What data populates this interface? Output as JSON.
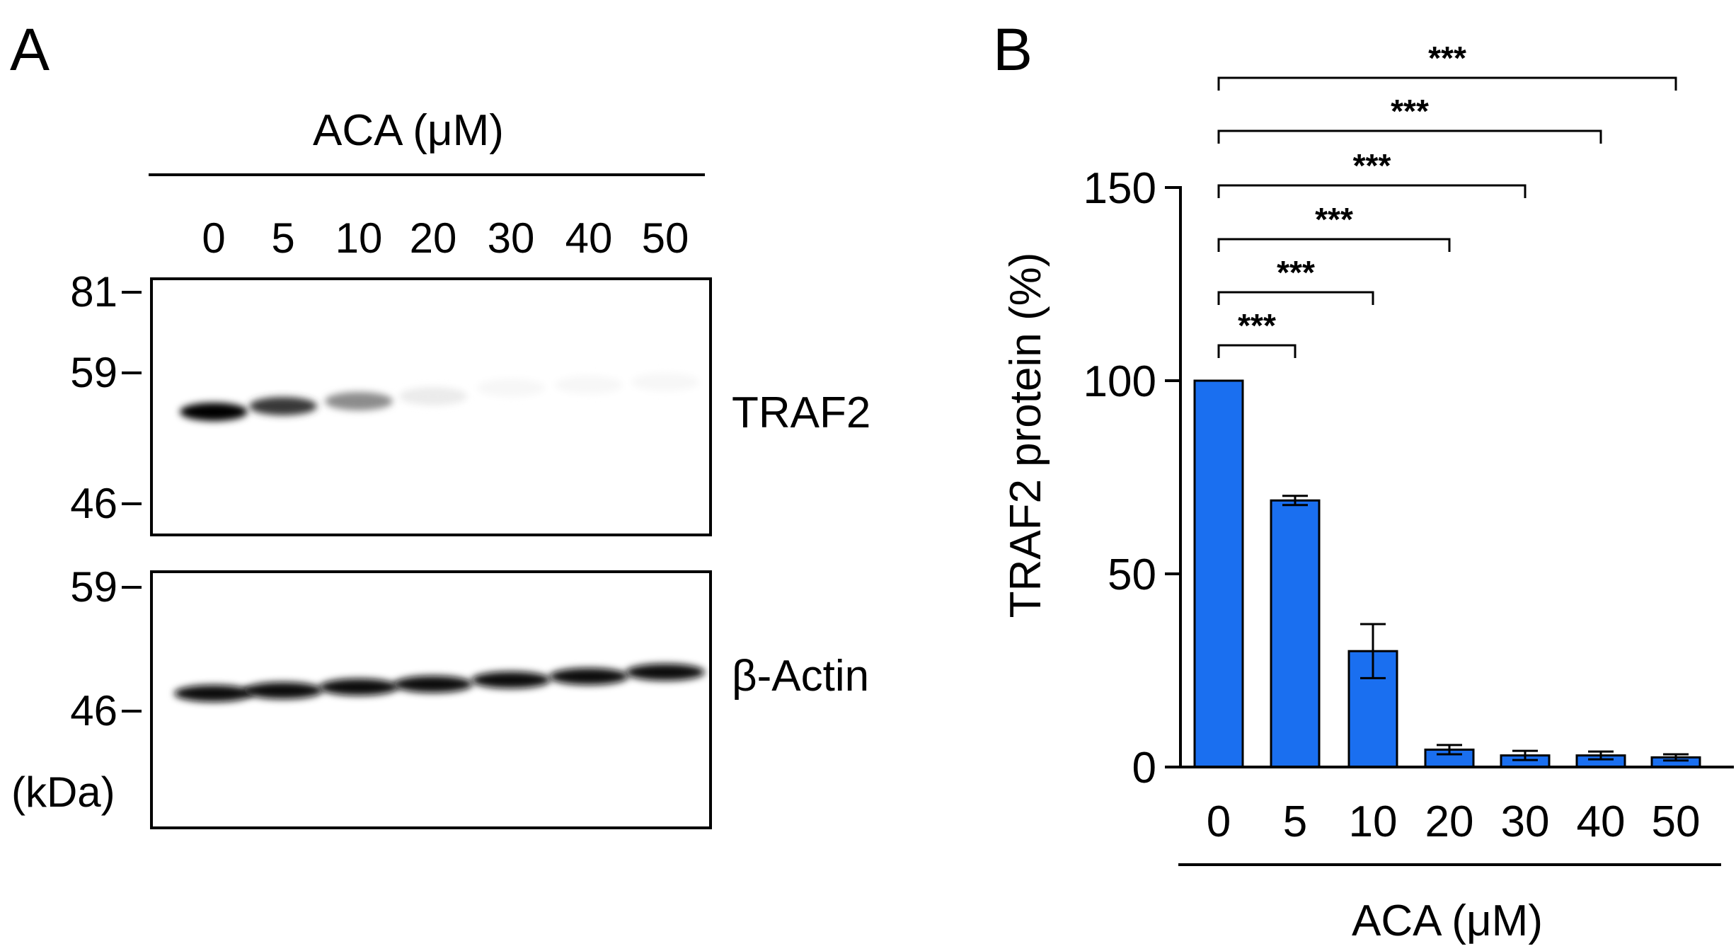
{
  "panel_a": {
    "letter": "A",
    "treatment_label": "ACA (μM)",
    "lanes": [
      "0",
      "5",
      "10",
      "20",
      "30",
      "40",
      "50"
    ],
    "traf2_blot": {
      "label": "TRAF2",
      "markers": [
        "81",
        "59",
        "46"
      ],
      "band_intensity": [
        1.0,
        0.78,
        0.45,
        0.08,
        0.03,
        0.03,
        0.03
      ]
    },
    "actin_blot": {
      "label": "β-Actin",
      "markers": [
        "59",
        "46"
      ],
      "band_intensity": [
        0.95,
        0.95,
        0.95,
        0.95,
        0.95,
        0.95,
        0.95
      ]
    },
    "unit_label": "(kDa)"
  },
  "panel_b": {
    "letter": "B"
  },
  "chart_data": {
    "type": "bar",
    "categories": [
      "0",
      "5",
      "10",
      "20",
      "30",
      "40",
      "50"
    ],
    "values": [
      100,
      69,
      30,
      4.5,
      3,
      3,
      2.5
    ],
    "errors": [
      0,
      1.2,
      7,
      1.2,
      1.2,
      1,
      0.8
    ],
    "xlabel": "ACA (μM)",
    "ylabel": "TRAF2 protein (%)",
    "ylim": [
      0,
      150
    ],
    "yticks": [
      0,
      50,
      100,
      150
    ],
    "bar_color": "#1a6ff0",
    "grid": false,
    "legend": "none",
    "significance": [
      {
        "from": "0",
        "to": "5",
        "label": "***"
      },
      {
        "from": "0",
        "to": "10",
        "label": "***"
      },
      {
        "from": "0",
        "to": "20",
        "label": "***"
      },
      {
        "from": "0",
        "to": "30",
        "label": "***"
      },
      {
        "from": "0",
        "to": "40",
        "label": "***"
      },
      {
        "from": "0",
        "to": "50",
        "label": "***"
      }
    ]
  }
}
